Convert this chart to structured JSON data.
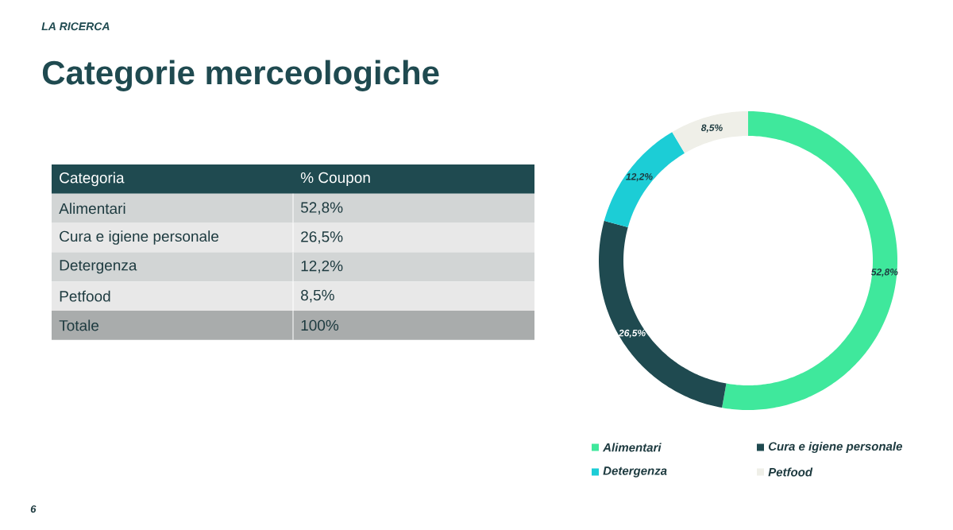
{
  "chart_data": {
    "type": "donut",
    "title": "Categorie merceologiche",
    "subtitle": "LA RICERCA",
    "categories": [
      "Alimentari",
      "Cura e igiene personale",
      "Detergenza",
      "Petfood"
    ],
    "values": [
      52.8,
      26.5,
      12.2,
      8.5
    ],
    "colors": [
      "#3fe89c",
      "#1f4a50",
      "#1ccdd6",
      "#efefe8"
    ],
    "value_labels": [
      "52,8%",
      "26,5%",
      "12,2%",
      "8,5%"
    ],
    "data_labels": true,
    "legend": "bottom",
    "annotations": [
      "Categoria",
      "% Coupon",
      "Totale",
      "100%",
      "6"
    ]
  }
}
